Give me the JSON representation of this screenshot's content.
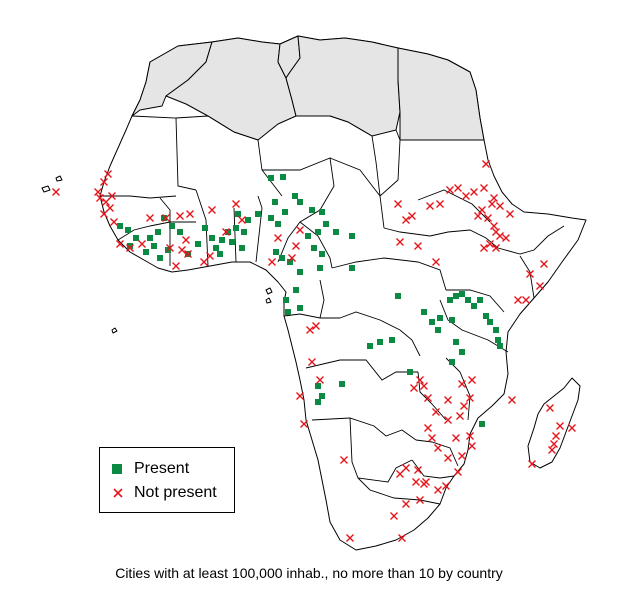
{
  "caption": "Cities with at least 100,000 inhab., no more than 10 by country",
  "legend": {
    "present_label": "Present",
    "not_present_label": "Not present"
  },
  "colors": {
    "present": "#0a8a43",
    "not_present": "#e8141c",
    "excluded_countries_fill": "#e5e5e5",
    "land_fill": "#ffffff"
  },
  "markers": {
    "present_symbol": "filled-square",
    "not_present_symbol": "cross-x"
  }
}
